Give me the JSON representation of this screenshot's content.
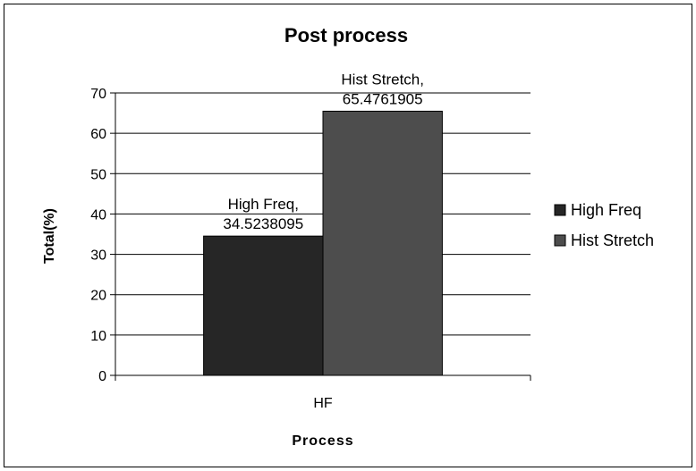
{
  "chart_data": {
    "type": "bar",
    "title": "Post process",
    "xlabel": "Process",
    "ylabel": "Total(%)",
    "categories": [
      "HF"
    ],
    "ylim": [
      0,
      70
    ],
    "yticks": [
      0,
      10,
      20,
      30,
      40,
      50,
      60,
      70
    ],
    "grid": true,
    "legend": "right",
    "series": [
      {
        "name": "High Freq",
        "values": [
          34.5238095
        ],
        "color": "#262626",
        "label_lines": [
          "High Freq,",
          "34.5238095"
        ]
      },
      {
        "name": "Hist Stretch",
        "values": [
          65.4761905
        ],
        "color": "#4d4d4d",
        "label_lines": [
          "Hist Stretch,",
          "65.4761905"
        ]
      }
    ]
  }
}
